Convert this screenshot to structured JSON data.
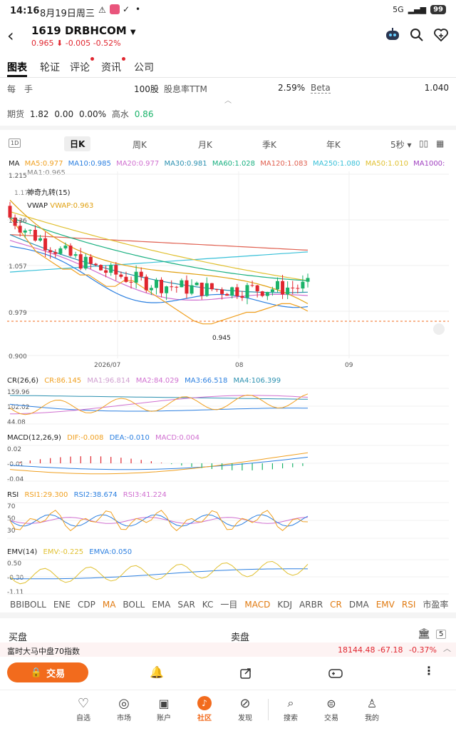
{
  "status": {
    "time": "14:16",
    "date": "8月19日周三",
    "battery": "99",
    "signal": "5G"
  },
  "header": {
    "ticker": "1619",
    "name": "DRBHCOM",
    "price": "0.965",
    "change": "-0.005",
    "change_pct": "-0.52%"
  },
  "tabs": [
    "图表",
    "轮证",
    "评论",
    "资讯",
    "公司"
  ],
  "info": {
    "row1_a": "每",
    "row1_b": "手",
    "lot_value": "100股",
    "yield_label": "股息率TTM",
    "yield_value": "2.59%",
    "beta_label": "Beta",
    "beta_value": "1.040",
    "futures_label": "期货",
    "futures_value": "1.82",
    "zero1": "0.00",
    "zero2": "0.00%",
    "high_label": "高水",
    "high_value": "0.86"
  },
  "periods": {
    "icon_left": "1D",
    "items": [
      "日K",
      "周K",
      "月K",
      "季K",
      "年K"
    ],
    "interval": "5秒"
  },
  "ma_labels": {
    "title": "MA",
    "ma5": "MA5:0.977",
    "ma10": "MA10:0.985",
    "ma20": "MA20:0.977",
    "ma30": "MA30:0.981",
    "ma60": "MA60:1.028",
    "ma120": "MA120:1.083",
    "ma250": "MA250:1.080",
    "ma50": "MA50:1.010",
    "ma1000": "MA1000:",
    "ma1": "MA1:0.965",
    "magic": "神奇九转(15)",
    "vwap_title": "VWAP",
    "vwap": "VWAP:0.963"
  },
  "colors": {
    "up": "#e0262f",
    "down": "#1bb36a",
    "accent": "#f26b1d",
    "ma5": "#f0a020",
    "ma10": "#2b7fe0",
    "ma20": "#d070d0",
    "ma30": "#2b90b0",
    "ma60": "#19b080",
    "ma120": "#e06050",
    "ma250": "#38c0d8",
    "ma50": "#e0c030"
  },
  "chart_data": {
    "type": "candlestick",
    "ylim": [
      0.9,
      1.215
    ],
    "y_ticks": [
      "1.215",
      "1.136",
      "1.057",
      "0.979",
      "0.900"
    ],
    "x_ticks": [
      "2026/07",
      "08",
      "09"
    ],
    "annotations": [
      "1.170",
      "0.945"
    ],
    "series": [
      {
        "name": "MA5",
        "values": [
          1.14,
          1.12,
          1.1,
          1.08,
          1.07,
          1.06,
          1.05,
          1.05,
          1.04,
          1.04,
          1.03,
          1.02,
          1.02,
          1.03,
          1.03,
          1.02,
          1.01,
          1.0,
          0.99,
          0.98,
          0.97,
          0.96,
          0.955,
          0.955,
          0.96,
          0.965,
          0.97,
          0.975,
          0.975,
          0.98,
          0.985,
          0.99,
          0.99,
          0.985,
          0.977
        ]
      }
    ]
  },
  "cr": {
    "title": "CR(26,6)",
    "cr": "CR:86.145",
    "ma1": "MA1:96.814",
    "ma2": "MA2:84.029",
    "ma3": "MA3:66.518",
    "ma4": "MA4:106.399",
    "ticks": [
      "159.96",
      "102.02",
      "44.08"
    ]
  },
  "macd": {
    "title": "MACD(12,26,9)",
    "dif": "DIF:-0.008",
    "dea": "DEA:-0.010",
    "macd": "MACD:0.004",
    "ticks": [
      "0.02",
      "-0.01",
      "-0.04"
    ]
  },
  "rsi": {
    "title": "RSI",
    "rsi1": "RSI1:29.300",
    "rsi2": "RSI2:38.674",
    "rsi3": "RSI3:41.224",
    "ticks": [
      "70",
      "50",
      "30"
    ]
  },
  "emv": {
    "title": "EMV(14)",
    "emv": "EMV:-0.225",
    "emva": "EMVA:0.050",
    "ticks": [
      "0.50",
      "-0.30",
      "-1.11"
    ]
  },
  "indicators": [
    "BBIBOLL",
    "ENE",
    "CDP",
    "MA",
    "BOLL",
    "EMA",
    "SAR",
    "KC",
    "一目",
    "MACD",
    "KDJ",
    "ARBR",
    "CR",
    "DMA",
    "EMV",
    "RSI",
    "市盈率"
  ],
  "order": {
    "buy": "买盘",
    "sell": "卖盘",
    "badge": "5"
  },
  "index_bar": {
    "name": "富时大马中盘70指数",
    "value": "18144.48",
    "change": "-67.18",
    "pct": "-0.37%"
  },
  "action": {
    "trade": "交易"
  },
  "nav": [
    "自选",
    "市场",
    "账户",
    "社区",
    "发现",
    "搜索",
    "交易",
    "我的"
  ]
}
